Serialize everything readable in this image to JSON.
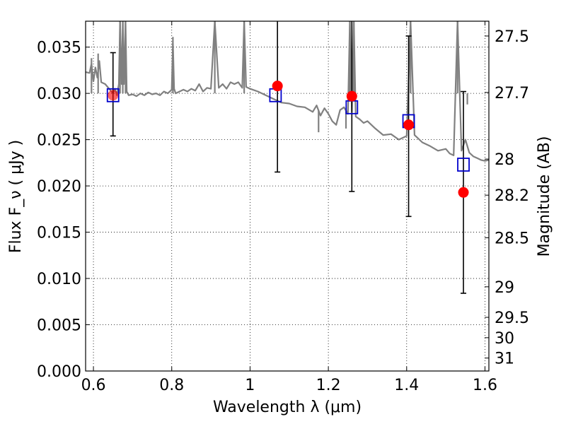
{
  "chart_data": {
    "type": "scatter",
    "xlabel": "Wavelength  λ (μm)",
    "ylabel": "Flux  F_ν  ( μJy )",
    "ylabel_right": "Magnitude (AB)",
    "xlim": [
      0.58,
      1.61
    ],
    "ylim": [
      0.0,
      0.0378
    ],
    "grid": true,
    "x_ticks": [
      0.6,
      0.8,
      1.0,
      1.2,
      1.4,
      1.6
    ],
    "x_tick_labels": [
      "0.6",
      "0.8",
      "1",
      "1.2",
      "1.4",
      "1.6"
    ],
    "y_ticks": [
      0.0,
      0.005,
      0.01,
      0.015,
      0.02,
      0.025,
      0.03,
      0.035
    ],
    "y_tick_labels": [
      "0.000",
      "0.005",
      "0.010",
      "0.015",
      "0.020",
      "0.025",
      "0.030",
      "0.035"
    ],
    "right_ticks": [
      {
        "label": "27.5",
        "flux": 0.0362
      },
      {
        "label": "27.7",
        "flux": 0.0301
      },
      {
        "label": "28",
        "flux": 0.0229
      },
      {
        "label": "28.2",
        "flux": 0.019
      },
      {
        "label": "28.5",
        "flux": 0.0144
      },
      {
        "label": "29",
        "flux": 0.0091
      },
      {
        "label": "29.5",
        "flux": 0.0058
      },
      {
        "label": "30",
        "flux": 0.0036
      },
      {
        "label": "31",
        "flux": 0.0014
      }
    ],
    "series": [
      {
        "kind": "template",
        "color": "#808080",
        "x": [
          0.58,
          0.59,
          0.595,
          0.6,
          0.605,
          0.61,
          0.615,
          0.62,
          0.63,
          0.64,
          0.65,
          0.655,
          0.66,
          0.665,
          0.668,
          0.672,
          0.675,
          0.678,
          0.682,
          0.685,
          0.69,
          0.7,
          0.71,
          0.72,
          0.73,
          0.74,
          0.75,
          0.76,
          0.77,
          0.78,
          0.79,
          0.8,
          0.803,
          0.806,
          0.81,
          0.82,
          0.83,
          0.84,
          0.85,
          0.86,
          0.87,
          0.88,
          0.89,
          0.9,
          0.91,
          0.92,
          0.93,
          0.94,
          0.95,
          0.96,
          0.97,
          0.98,
          0.985,
          0.99,
          1.0,
          1.02,
          1.04,
          1.06,
          1.08,
          1.1,
          1.12,
          1.14,
          1.16,
          1.17,
          1.18,
          1.19,
          1.2,
          1.21,
          1.22,
          1.23,
          1.24,
          1.25,
          1.255,
          1.26,
          1.265,
          1.27,
          1.28,
          1.29,
          1.3,
          1.32,
          1.34,
          1.36,
          1.38,
          1.4,
          1.41,
          1.42,
          1.44,
          1.46,
          1.48,
          1.5,
          1.51,
          1.52,
          1.53,
          1.54,
          1.55,
          1.56,
          1.57,
          1.58,
          1.59,
          1.6,
          1.61
        ],
        "y": [
          0.0323,
          0.0322,
          0.0332,
          0.0313,
          0.0328,
          0.0317,
          0.0335,
          0.0312,
          0.031,
          0.0305,
          0.03,
          0.0305,
          0.0298,
          0.031,
          0.0378,
          0.031,
          0.0378,
          0.031,
          0.0378,
          0.0302,
          0.0298,
          0.0299,
          0.0297,
          0.03,
          0.0298,
          0.0301,
          0.0299,
          0.03,
          0.0298,
          0.0302,
          0.03,
          0.0304,
          0.0355,
          0.0305,
          0.03,
          0.0302,
          0.0304,
          0.0302,
          0.0305,
          0.0303,
          0.031,
          0.0302,
          0.0306,
          0.0305,
          0.0378,
          0.0306,
          0.031,
          0.0305,
          0.0312,
          0.031,
          0.0312,
          0.0306,
          0.0378,
          0.0307,
          0.0305,
          0.0302,
          0.0298,
          0.0294,
          0.029,
          0.0289,
          0.0286,
          0.0285,
          0.028,
          0.0287,
          0.0276,
          0.0284,
          0.0278,
          0.027,
          0.0266,
          0.0282,
          0.0285,
          0.0278,
          0.0378,
          0.028,
          0.0378,
          0.0275,
          0.0272,
          0.0268,
          0.027,
          0.0262,
          0.0255,
          0.0256,
          0.025,
          0.0254,
          0.0378,
          0.0255,
          0.0247,
          0.0243,
          0.0238,
          0.024,
          0.0235,
          0.0233,
          0.0378,
          0.0238,
          0.025,
          0.0236,
          0.0232,
          0.023,
          0.0228,
          0.0227,
          0.0228
        ],
        "spikes": [
          {
            "x": 0.595,
            "top": 0.0335
          },
          {
            "x": 0.612,
            "top": 0.034
          },
          {
            "x": 0.668,
            "top": 0.0378
          },
          {
            "x": 0.675,
            "top": 0.0378
          },
          {
            "x": 0.682,
            "top": 0.0378
          },
          {
            "x": 0.803,
            "top": 0.0358
          },
          {
            "x": 0.91,
            "top": 0.0378
          },
          {
            "x": 0.985,
            "top": 0.0378
          },
          {
            "x": 1.255,
            "top": 0.0378
          },
          {
            "x": 1.265,
            "top": 0.0378
          },
          {
            "x": 1.41,
            "top": 0.0378
          },
          {
            "x": 1.53,
            "top": 0.0378
          },
          {
            "x": 1.555,
            "top": 0.0285
          }
        ],
        "dips": [
          {
            "x": 1.175,
            "bottom": 0.0258
          },
          {
            "x": 1.245,
            "bottom": 0.0262
          }
        ]
      },
      {
        "kind": "model_photometry",
        "marker": "open-square",
        "color": "#0000cc",
        "x": [
          0.65,
          1.065,
          1.26,
          1.405,
          1.545
        ],
        "y": [
          0.0298,
          0.0298,
          0.0285,
          0.027,
          0.0223
        ]
      },
      {
        "kind": "observed",
        "marker": "filled-circle",
        "color": "#ff0000",
        "x": [
          0.65,
          1.07,
          1.26,
          1.405,
          1.545
        ],
        "y": [
          0.0298,
          0.0308,
          0.0297,
          0.0266,
          0.0193
        ],
        "err_low": [
          0.0254,
          0.0215,
          0.0194,
          0.0167,
          0.0084
        ],
        "err_high": [
          0.0344,
          0.0378,
          0.0378,
          0.0362,
          0.0302
        ]
      }
    ]
  }
}
